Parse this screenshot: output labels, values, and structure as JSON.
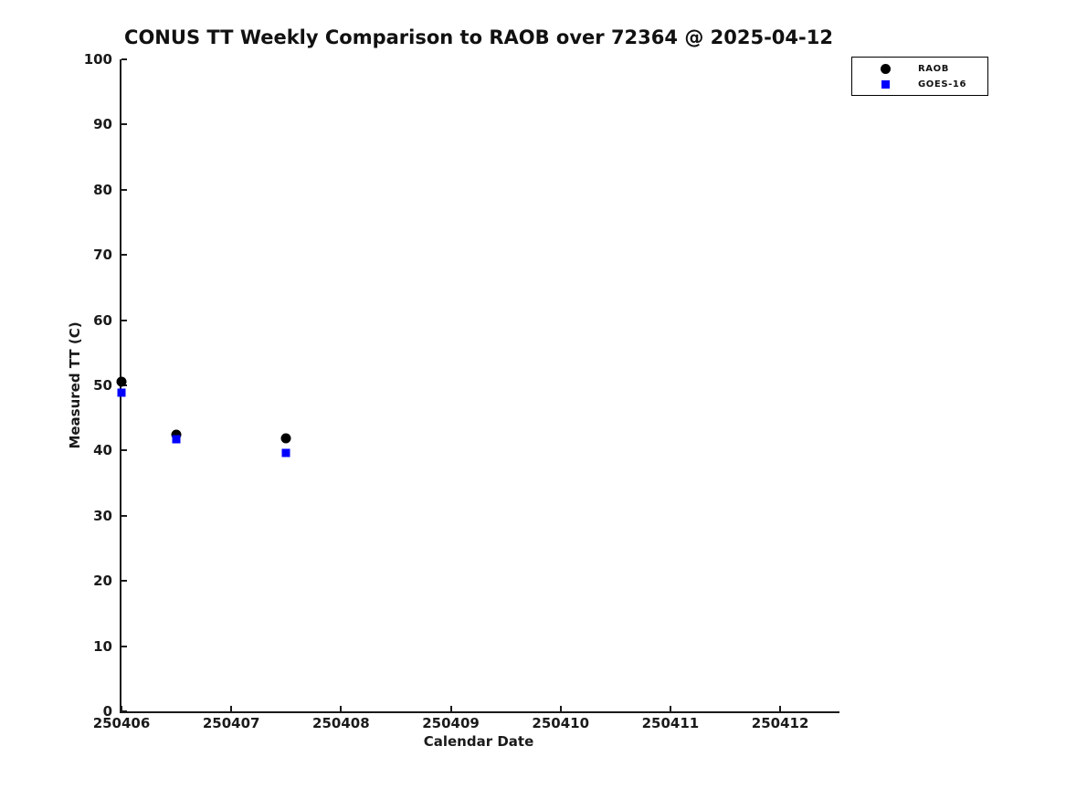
{
  "title": "CONUS TT Weekly Comparison to RAOB over 72364 @ 2025-04-12",
  "chart_data": {
    "type": "scatter",
    "title": "CONUS TT Weekly Comparison to RAOB over 72364 @ 2025-04-12",
    "xlabel": "Calendar Date",
    "ylabel": "Measured TT (C)",
    "xlim": [
      250406,
      250412.54
    ],
    "ylim": [
      0,
      100
    ],
    "x_ticks": [
      250406,
      250407,
      250408,
      250409,
      250410,
      250411,
      250412
    ],
    "y_ticks": [
      0,
      10,
      20,
      30,
      40,
      50,
      60,
      70,
      80,
      90,
      100
    ],
    "grid": false,
    "legend_position": "top-right-outside",
    "series": [
      {
        "name": "RAOB",
        "marker": "circle",
        "color": "#000000",
        "points": [
          [
            250406.0,
            50.6
          ],
          [
            250406.5,
            42.4
          ],
          [
            250407.5,
            41.9
          ]
        ]
      },
      {
        "name": "GOES-16",
        "marker": "square",
        "color": "#0000ff",
        "points": [
          [
            250406.0,
            48.9
          ],
          [
            250406.5,
            41.8
          ],
          [
            250407.5,
            39.6
          ]
        ]
      }
    ]
  }
}
